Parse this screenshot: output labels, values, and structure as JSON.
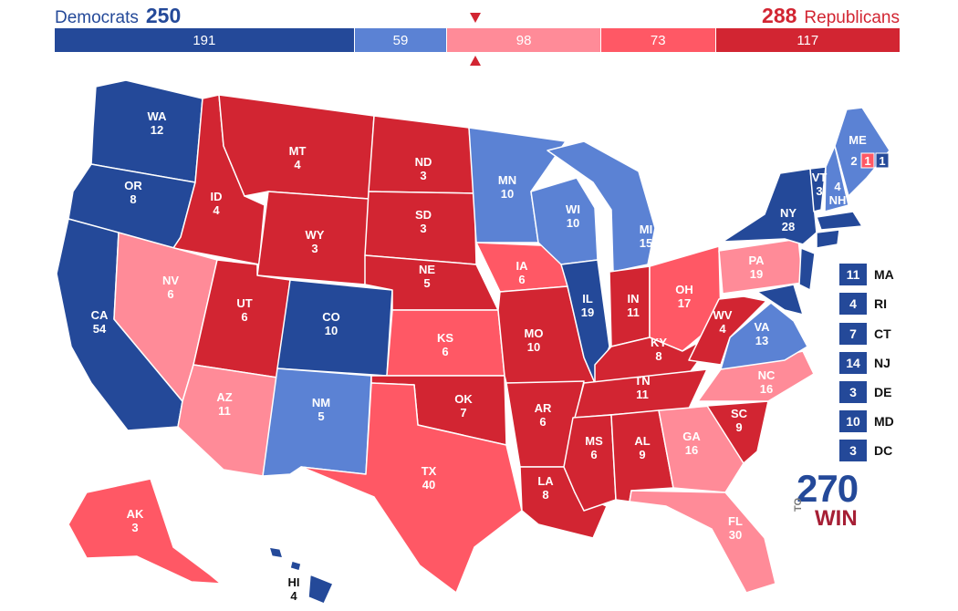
{
  "header": {
    "dem_label": "Democrats",
    "dem_total": "250",
    "rep_total": "288",
    "rep_label": "Republicans"
  },
  "bar": [
    {
      "value": "191",
      "color": "#244999",
      "count": 191
    },
    {
      "value": "59",
      "color": "#5b82d4",
      "count": 59
    },
    {
      "value": "98",
      "color": "#ff8b98",
      "count": 98
    },
    {
      "value": "73",
      "color": "#ff5865",
      "count": 73
    },
    {
      "value": "117",
      "color": "#d22532",
      "count": 117
    }
  ],
  "colors": {
    "solid_dem": "#244999",
    "likely_dem": "#5b82d4",
    "leans_rep": "#ff8b98",
    "likely_rep": "#ff5865",
    "solid_rep": "#d22532"
  },
  "states": {
    "WA": {
      "abbr": "WA",
      "ev": "12"
    },
    "OR": {
      "abbr": "OR",
      "ev": "8"
    },
    "CA": {
      "abbr": "CA",
      "ev": "54"
    },
    "ID": {
      "abbr": "ID",
      "ev": "4"
    },
    "NV": {
      "abbr": "NV",
      "ev": "6"
    },
    "MT": {
      "abbr": "MT",
      "ev": "4"
    },
    "WY": {
      "abbr": "WY",
      "ev": "3"
    },
    "UT": {
      "abbr": "UT",
      "ev": "6"
    },
    "AZ": {
      "abbr": "AZ",
      "ev": "11"
    },
    "CO": {
      "abbr": "CO",
      "ev": "10"
    },
    "NM": {
      "abbr": "NM",
      "ev": "5"
    },
    "ND": {
      "abbr": "ND",
      "ev": "3"
    },
    "SD": {
      "abbr": "SD",
      "ev": "3"
    },
    "NE": {
      "abbr": "NE",
      "ev": "5"
    },
    "KS": {
      "abbr": "KS",
      "ev": "6"
    },
    "OK": {
      "abbr": "OK",
      "ev": "7"
    },
    "TX": {
      "abbr": "TX",
      "ev": "40"
    },
    "MN": {
      "abbr": "MN",
      "ev": "10"
    },
    "IA": {
      "abbr": "IA",
      "ev": "6"
    },
    "MO": {
      "abbr": "MO",
      "ev": "10"
    },
    "AR": {
      "abbr": "AR",
      "ev": "6"
    },
    "LA": {
      "abbr": "LA",
      "ev": "8"
    },
    "WI": {
      "abbr": "WI",
      "ev": "10"
    },
    "IL": {
      "abbr": "IL",
      "ev": "19"
    },
    "MI": {
      "abbr": "MI",
      "ev": "15"
    },
    "IN": {
      "abbr": "IN",
      "ev": "11"
    },
    "OH": {
      "abbr": "OH",
      "ev": "17"
    },
    "KY": {
      "abbr": "KY",
      "ev": "8"
    },
    "TN": {
      "abbr": "TN",
      "ev": "11"
    },
    "MS": {
      "abbr": "MS",
      "ev": "6"
    },
    "AL": {
      "abbr": "AL",
      "ev": "9"
    },
    "GA": {
      "abbr": "GA",
      "ev": "16"
    },
    "FL": {
      "abbr": "FL",
      "ev": "30"
    },
    "SC": {
      "abbr": "SC",
      "ev": "9"
    },
    "NC": {
      "abbr": "NC",
      "ev": "16"
    },
    "VA": {
      "abbr": "VA",
      "ev": "13"
    },
    "WV": {
      "abbr": "WV",
      "ev": "4"
    },
    "PA": {
      "abbr": "PA",
      "ev": "19"
    },
    "NY": {
      "abbr": "NY",
      "ev": "28"
    },
    "VT": {
      "abbr": "VT",
      "ev": "3"
    },
    "NH": {
      "abbr": "NH",
      "ev": "4"
    },
    "ME": {
      "abbr": "ME",
      "ev": "2"
    },
    "AK": {
      "abbr": "AK",
      "ev": "3"
    },
    "HI": {
      "abbr": "HI",
      "ev": "4"
    }
  },
  "maine_districts": [
    "1",
    "1"
  ],
  "small_states": [
    {
      "ev": "11",
      "abbr": "MA"
    },
    {
      "ev": "4",
      "abbr": "RI"
    },
    {
      "ev": "7",
      "abbr": "CT"
    },
    {
      "ev": "14",
      "abbr": "NJ"
    },
    {
      "ev": "3",
      "abbr": "DE"
    },
    {
      "ev": "10",
      "abbr": "MD"
    },
    {
      "ev": "3",
      "abbr": "DC"
    }
  ],
  "logo": {
    "number": "270",
    "to": "TO",
    "win": "WIN"
  }
}
